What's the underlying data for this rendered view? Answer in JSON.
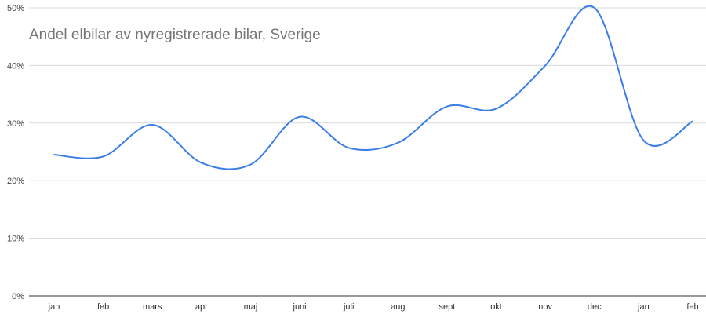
{
  "chart_data": {
    "type": "line",
    "title": "Andel elbilar av nyregistrerade bilar, Sverige",
    "xlabel": "",
    "ylabel": "",
    "categories": [
      "jan",
      "feb",
      "mars",
      "apr",
      "maj",
      "juni",
      "juli",
      "aug",
      "sept",
      "okt",
      "nov",
      "dec",
      "jan",
      "feb"
    ],
    "series": [
      {
        "values": [
          24.5,
          24.2,
          29.7,
          23.1,
          22.8,
          31.1,
          25.7,
          26.6,
          32.9,
          32.5,
          40.0,
          50.0,
          27.0,
          30.3
        ]
      }
    ],
    "ylim": [
      0,
      50
    ],
    "yticks": [
      0,
      10,
      20,
      30,
      40,
      50
    ],
    "ytick_labels": [
      "0%",
      "10%",
      "20%",
      "30%",
      "40%",
      "50%"
    ],
    "grid": true,
    "legend": "none",
    "colors": {
      "line": "#3b7ee6",
      "grid": "#d9d9d9",
      "title": "#757575"
    }
  }
}
